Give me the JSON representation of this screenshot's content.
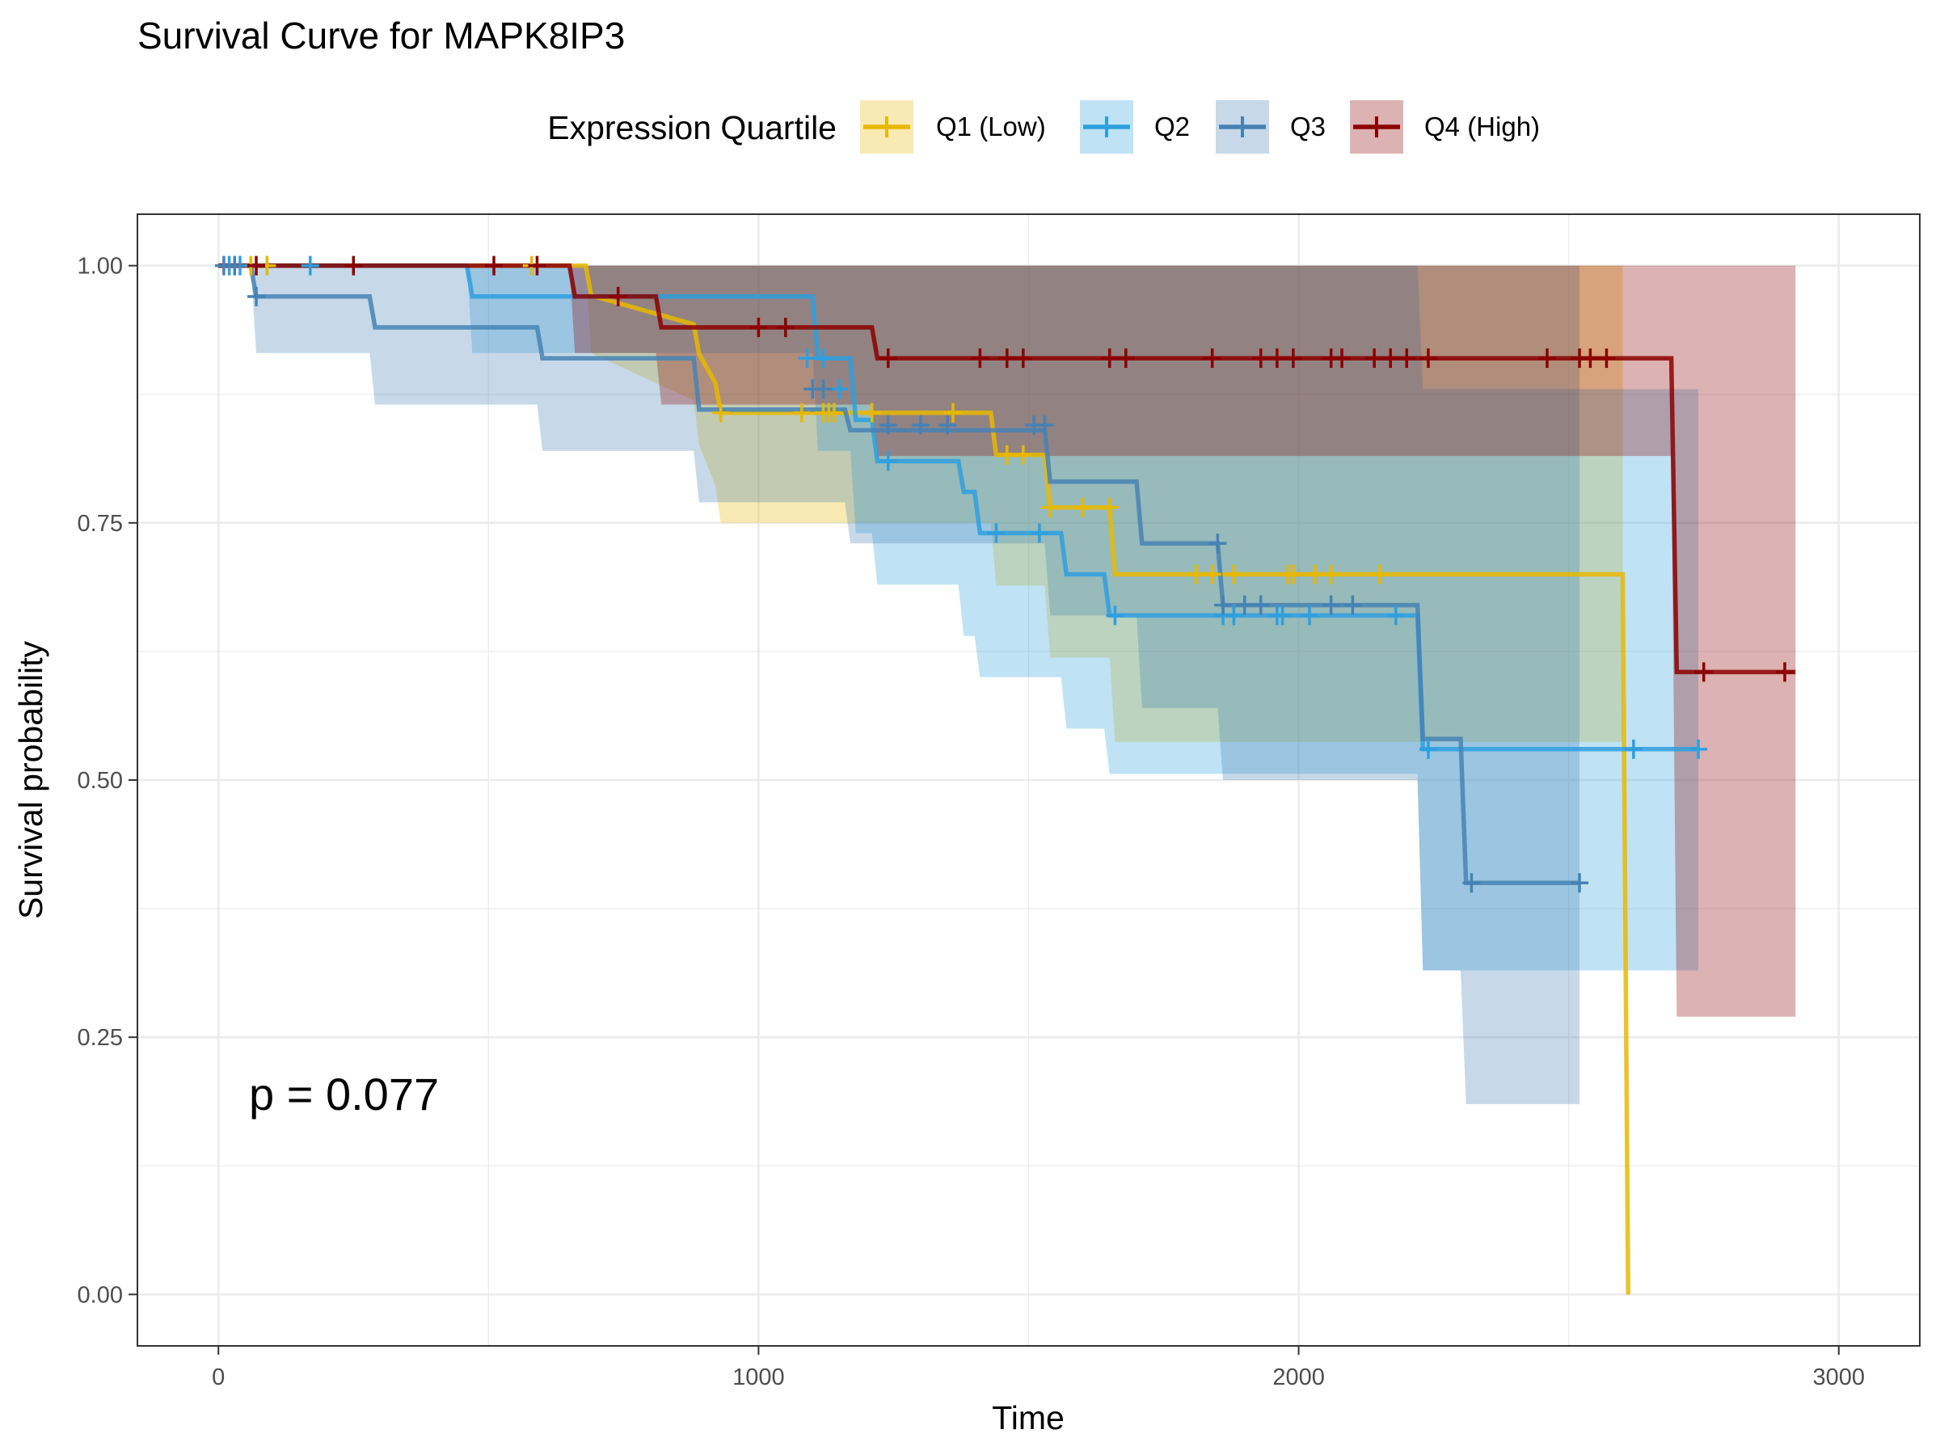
{
  "chart_data": {
    "type": "line",
    "subtype": "kaplan-meier",
    "title": "Survival Curve for MAPK8IP3",
    "xlabel": "Time",
    "ylabel": "Survival probability",
    "xlim": [
      -150,
      3150
    ],
    "ylim": [
      -0.05,
      1.05
    ],
    "xticks": [
      0,
      1000,
      2000,
      3000
    ],
    "xtick_labels": [
      "0",
      "1000",
      "2000",
      "3000"
    ],
    "yticks": [
      0,
      0.25,
      0.5,
      0.75,
      1.0
    ],
    "ytick_labels": [
      "0.00",
      "0.25",
      "0.50",
      "0.75",
      "1.00"
    ],
    "legend": {
      "title": "Expression Quartile",
      "position": "top"
    },
    "annotation": "p = 0.077",
    "series": [
      {
        "name": "Q1 (Low)",
        "color": "#E7B800",
        "steps": [
          [
            0,
            1.0
          ],
          [
            680,
            1.0
          ],
          [
            690,
            0.971
          ],
          [
            880,
            0.943
          ],
          [
            890,
            0.914
          ],
          [
            920,
            0.886
          ],
          [
            930,
            0.857
          ],
          [
            1430,
            0.857
          ],
          [
            1440,
            0.816
          ],
          [
            1530,
            0.816
          ],
          [
            1540,
            0.765
          ],
          [
            1650,
            0.765
          ],
          [
            1660,
            0.7
          ],
          [
            2600,
            0.7
          ],
          [
            2610,
            0.0
          ]
        ],
        "lower": [
          [
            0,
            1.0
          ],
          [
            680,
            1.0
          ],
          [
            690,
            0.915
          ],
          [
            880,
            0.869
          ],
          [
            890,
            0.826
          ],
          [
            920,
            0.786
          ],
          [
            930,
            0.75
          ],
          [
            1430,
            0.75
          ],
          [
            1440,
            0.689
          ],
          [
            1530,
            0.689
          ],
          [
            1540,
            0.619
          ],
          [
            1650,
            0.619
          ],
          [
            1660,
            0.537
          ],
          [
            2600,
            0.537
          ]
        ],
        "upper": [
          [
            0,
            1.0
          ],
          [
            2600,
            1.0
          ]
        ],
        "censor": [
          [
            60,
            1.0
          ],
          [
            90,
            1.0
          ],
          [
            580,
            1.0
          ],
          [
            930,
            0.857
          ],
          [
            1080,
            0.857
          ],
          [
            1120,
            0.857
          ],
          [
            1130,
            0.857
          ],
          [
            1140,
            0.857
          ],
          [
            1210,
            0.857
          ],
          [
            1360,
            0.857
          ],
          [
            1460,
            0.816
          ],
          [
            1490,
            0.816
          ],
          [
            1540,
            0.765
          ],
          [
            1600,
            0.765
          ],
          [
            1650,
            0.765
          ],
          [
            1810,
            0.7
          ],
          [
            1840,
            0.7
          ],
          [
            1880,
            0.7
          ],
          [
            1980,
            0.7
          ],
          [
            1990,
            0.7
          ],
          [
            2030,
            0.7
          ],
          [
            2060,
            0.7
          ],
          [
            2150,
            0.7
          ]
        ]
      },
      {
        "name": "Q2",
        "color": "#2E9FDF",
        "steps": [
          [
            0,
            1.0
          ],
          [
            460,
            1.0
          ],
          [
            470,
            0.97
          ],
          [
            1100,
            0.97
          ],
          [
            1110,
            0.91
          ],
          [
            1170,
            0.91
          ],
          [
            1180,
            0.85
          ],
          [
            1210,
            0.85
          ],
          [
            1220,
            0.81
          ],
          [
            1370,
            0.81
          ],
          [
            1380,
            0.78
          ],
          [
            1400,
            0.78
          ],
          [
            1410,
            0.74
          ],
          [
            1560,
            0.74
          ],
          [
            1570,
            0.7
          ],
          [
            1640,
            0.7
          ],
          [
            1650,
            0.66
          ],
          [
            2220,
            0.66
          ],
          [
            2230,
            0.53
          ],
          [
            2740,
            0.53
          ]
        ],
        "lower": [
          [
            0,
            1.0
          ],
          [
            460,
            1.0
          ],
          [
            470,
            0.915
          ],
          [
            1100,
            0.915
          ],
          [
            1110,
            0.82
          ],
          [
            1170,
            0.82
          ],
          [
            1180,
            0.74
          ],
          [
            1210,
            0.74
          ],
          [
            1220,
            0.69
          ],
          [
            1370,
            0.69
          ],
          [
            1380,
            0.64
          ],
          [
            1400,
            0.64
          ],
          [
            1410,
            0.6
          ],
          [
            1560,
            0.6
          ],
          [
            1570,
            0.55
          ],
          [
            1640,
            0.55
          ],
          [
            1650,
            0.506
          ],
          [
            2220,
            0.506
          ],
          [
            2230,
            0.315
          ],
          [
            2740,
            0.315
          ]
        ],
        "upper": [
          [
            0,
            1.0
          ],
          [
            2220,
            1.0
          ],
          [
            2230,
            0.88
          ],
          [
            2740,
            0.88
          ]
        ],
        "censor": [
          [
            20,
            1.0
          ],
          [
            40,
            1.0
          ],
          [
            170,
            1.0
          ],
          [
            1090,
            0.91
          ],
          [
            1120,
            0.91
          ],
          [
            1150,
            0.88
          ],
          [
            1240,
            0.81
          ],
          [
            1440,
            0.74
          ],
          [
            1520,
            0.74
          ],
          [
            1660,
            0.66
          ],
          [
            1860,
            0.66
          ],
          [
            1880,
            0.66
          ],
          [
            1960,
            0.66
          ],
          [
            1970,
            0.66
          ],
          [
            2020,
            0.66
          ],
          [
            2180,
            0.66
          ],
          [
            2240,
            0.53
          ],
          [
            2620,
            0.53
          ],
          [
            2740,
            0.53
          ]
        ]
      },
      {
        "name": "Q3",
        "color": "#4682B4",
        "steps": [
          [
            0,
            1.0
          ],
          [
            60,
            1.0
          ],
          [
            70,
            0.97
          ],
          [
            280,
            0.97
          ],
          [
            290,
            0.94
          ],
          [
            590,
            0.94
          ],
          [
            600,
            0.91
          ],
          [
            880,
            0.91
          ],
          [
            890,
            0.86
          ],
          [
            1160,
            0.86
          ],
          [
            1170,
            0.84
          ],
          [
            1530,
            0.84
          ],
          [
            1540,
            0.79
          ],
          [
            1700,
            0.79
          ],
          [
            1710,
            0.73
          ],
          [
            1850,
            0.73
          ],
          [
            1860,
            0.67
          ],
          [
            2220,
            0.67
          ],
          [
            2230,
            0.54
          ],
          [
            2300,
            0.54
          ],
          [
            2310,
            0.4
          ],
          [
            2520,
            0.4
          ]
        ],
        "lower": [
          [
            0,
            1.0
          ],
          [
            60,
            1.0
          ],
          [
            70,
            0.915
          ],
          [
            280,
            0.915
          ],
          [
            290,
            0.865
          ],
          [
            590,
            0.865
          ],
          [
            600,
            0.82
          ],
          [
            880,
            0.82
          ],
          [
            890,
            0.77
          ],
          [
            1160,
            0.77
          ],
          [
            1170,
            0.73
          ],
          [
            1530,
            0.73
          ],
          [
            1540,
            0.66
          ],
          [
            1700,
            0.66
          ],
          [
            1710,
            0.57
          ],
          [
            1850,
            0.57
          ],
          [
            1860,
            0.5
          ],
          [
            2220,
            0.5
          ],
          [
            2230,
            0.315
          ],
          [
            2300,
            0.315
          ],
          [
            2310,
            0.185
          ],
          [
            2520,
            0.185
          ]
        ],
        "upper": [
          [
            0,
            1.0
          ],
          [
            2520,
            1.0
          ]
        ],
        "censor": [
          [
            10,
            1.0
          ],
          [
            30,
            1.0
          ],
          [
            70,
            0.97
          ],
          [
            1100,
            0.88
          ],
          [
            1120,
            0.88
          ],
          [
            1240,
            0.845
          ],
          [
            1300,
            0.845
          ],
          [
            1350,
            0.845
          ],
          [
            1510,
            0.845
          ],
          [
            1530,
            0.845
          ],
          [
            1850,
            0.73
          ],
          [
            1860,
            0.67
          ],
          [
            1900,
            0.67
          ],
          [
            1930,
            0.67
          ],
          [
            2060,
            0.67
          ],
          [
            2100,
            0.67
          ],
          [
            2320,
            0.4
          ],
          [
            2520,
            0.4
          ]
        ]
      },
      {
        "name": "Q4 (High)",
        "color": "#8B0000",
        "steps": [
          [
            0,
            1.0
          ],
          [
            650,
            1.0
          ],
          [
            660,
            0.97
          ],
          [
            810,
            0.97
          ],
          [
            820,
            0.94
          ],
          [
            1210,
            0.94
          ],
          [
            1220,
            0.91
          ],
          [
            2690,
            0.91
          ],
          [
            2700,
            0.605
          ],
          [
            2920,
            0.605
          ]
        ],
        "lower": [
          [
            0,
            1.0
          ],
          [
            650,
            1.0
          ],
          [
            660,
            0.915
          ],
          [
            810,
            0.915
          ],
          [
            820,
            0.865
          ],
          [
            1210,
            0.865
          ],
          [
            1220,
            0.815
          ],
          [
            2690,
            0.815
          ],
          [
            2700,
            0.27
          ],
          [
            2920,
            0.27
          ]
        ],
        "upper": [
          [
            0,
            1.0
          ],
          [
            2920,
            1.0
          ]
        ],
        "censor": [
          [
            70,
            1.0
          ],
          [
            250,
            1.0
          ],
          [
            510,
            1.0
          ],
          [
            590,
            1.0
          ],
          [
            740,
            0.97
          ],
          [
            1000,
            0.94
          ],
          [
            1050,
            0.94
          ],
          [
            1240,
            0.91
          ],
          [
            1410,
            0.91
          ],
          [
            1460,
            0.91
          ],
          [
            1490,
            0.91
          ],
          [
            1650,
            0.91
          ],
          [
            1680,
            0.91
          ],
          [
            1840,
            0.91
          ],
          [
            1930,
            0.91
          ],
          [
            1960,
            0.91
          ],
          [
            1990,
            0.91
          ],
          [
            2060,
            0.91
          ],
          [
            2080,
            0.91
          ],
          [
            2140,
            0.91
          ],
          [
            2170,
            0.91
          ],
          [
            2200,
            0.91
          ],
          [
            2240,
            0.91
          ],
          [
            2460,
            0.91
          ],
          [
            2520,
            0.91
          ],
          [
            2540,
            0.91
          ],
          [
            2570,
            0.91
          ],
          [
            2750,
            0.605
          ],
          [
            2900,
            0.605
          ]
        ]
      }
    ]
  }
}
